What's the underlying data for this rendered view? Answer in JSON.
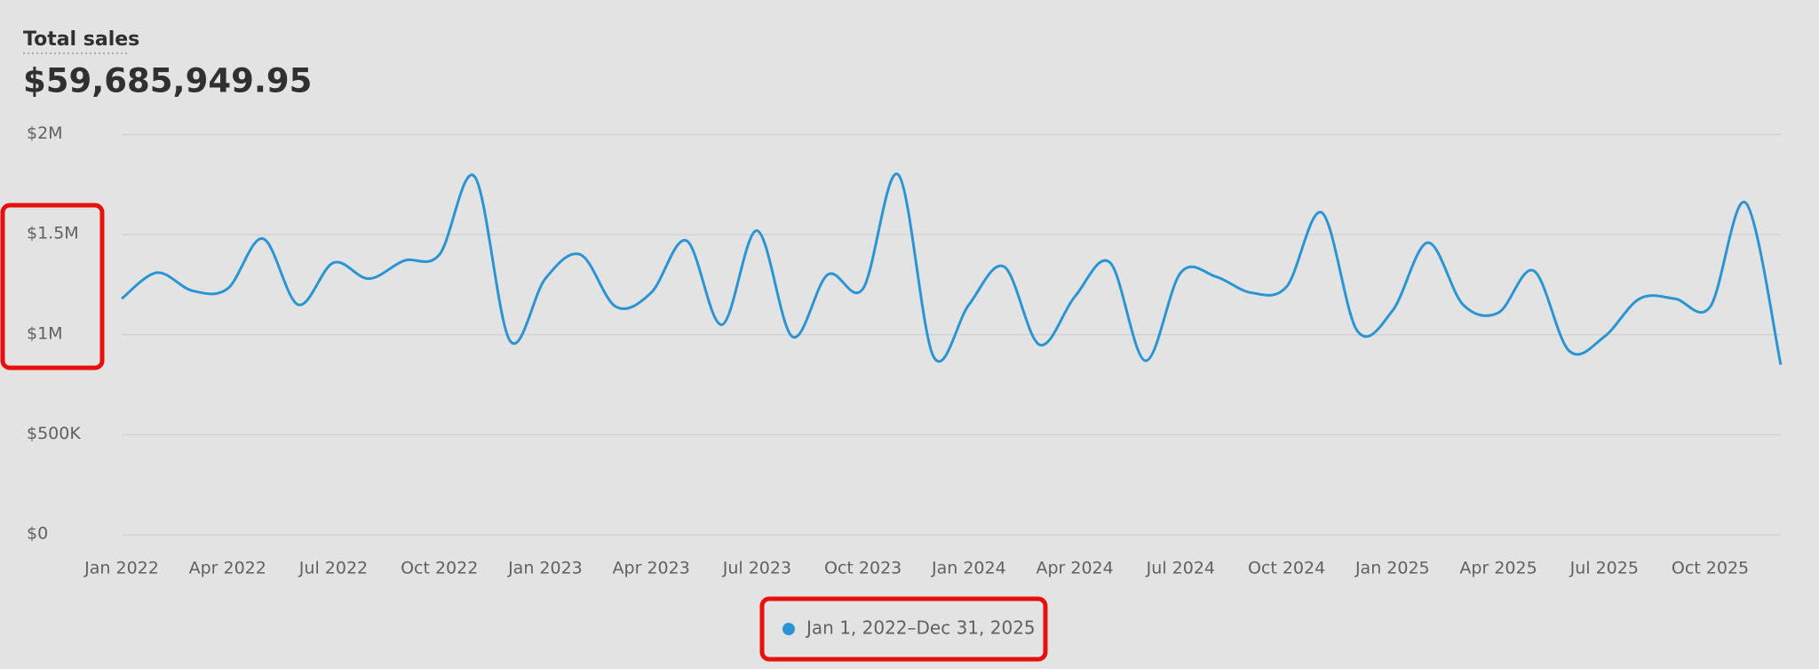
{
  "chart_data": {
    "type": "line",
    "title": "Total sales",
    "subtitle": "$59,685,949.95",
    "categories": [
      "Jan 2022",
      null,
      null,
      "Apr 2022",
      null,
      null,
      "Jul 2022",
      null,
      null,
      "Oct 2022",
      null,
      null,
      "Jan 2023",
      null,
      null,
      "Apr 2023",
      null,
      null,
      "Jul 2023",
      null,
      null,
      "Oct 2023",
      null,
      null,
      "Jan 2024",
      null,
      null,
      "Apr 2024",
      null,
      null,
      "Jul 2024",
      null,
      null,
      "Oct 2024",
      null,
      null,
      "Jan 2025",
      null,
      null,
      "Apr 2025",
      null,
      null,
      "Jul 2025",
      null,
      null,
      "Oct 2025",
      null,
      null
    ],
    "series": [
      {
        "name": "Jan 1, 2022–Dec 31, 2025",
        "color": "#2b95d3",
        "values": [
          1180000,
          1310000,
          1220000,
          1230000,
          1480000,
          1150000,
          1360000,
          1280000,
          1370000,
          1400000,
          1790000,
          970000,
          1280000,
          1400000,
          1140000,
          1210000,
          1470000,
          1050000,
          1520000,
          990000,
          1300000,
          1230000,
          1800000,
          890000,
          1150000,
          1340000,
          950000,
          1190000,
          1360000,
          870000,
          1310000,
          1290000,
          1210000,
          1240000,
          1610000,
          1020000,
          1120000,
          1460000,
          1150000,
          1110000,
          1320000,
          920000,
          990000,
          1180000,
          1180000,
          1140000,
          1660000,
          850000
        ]
      }
    ],
    "ylim": [
      0,
      2000000
    ],
    "yticks": [
      {
        "value": 0,
        "label": "$0"
      },
      {
        "value": 500000,
        "label": "$500K"
      },
      {
        "value": 1000000,
        "label": "$1M"
      },
      {
        "value": 1500000,
        "label": "$1.5M"
      },
      {
        "value": 2000000,
        "label": "$2M"
      }
    ],
    "grid": true
  }
}
